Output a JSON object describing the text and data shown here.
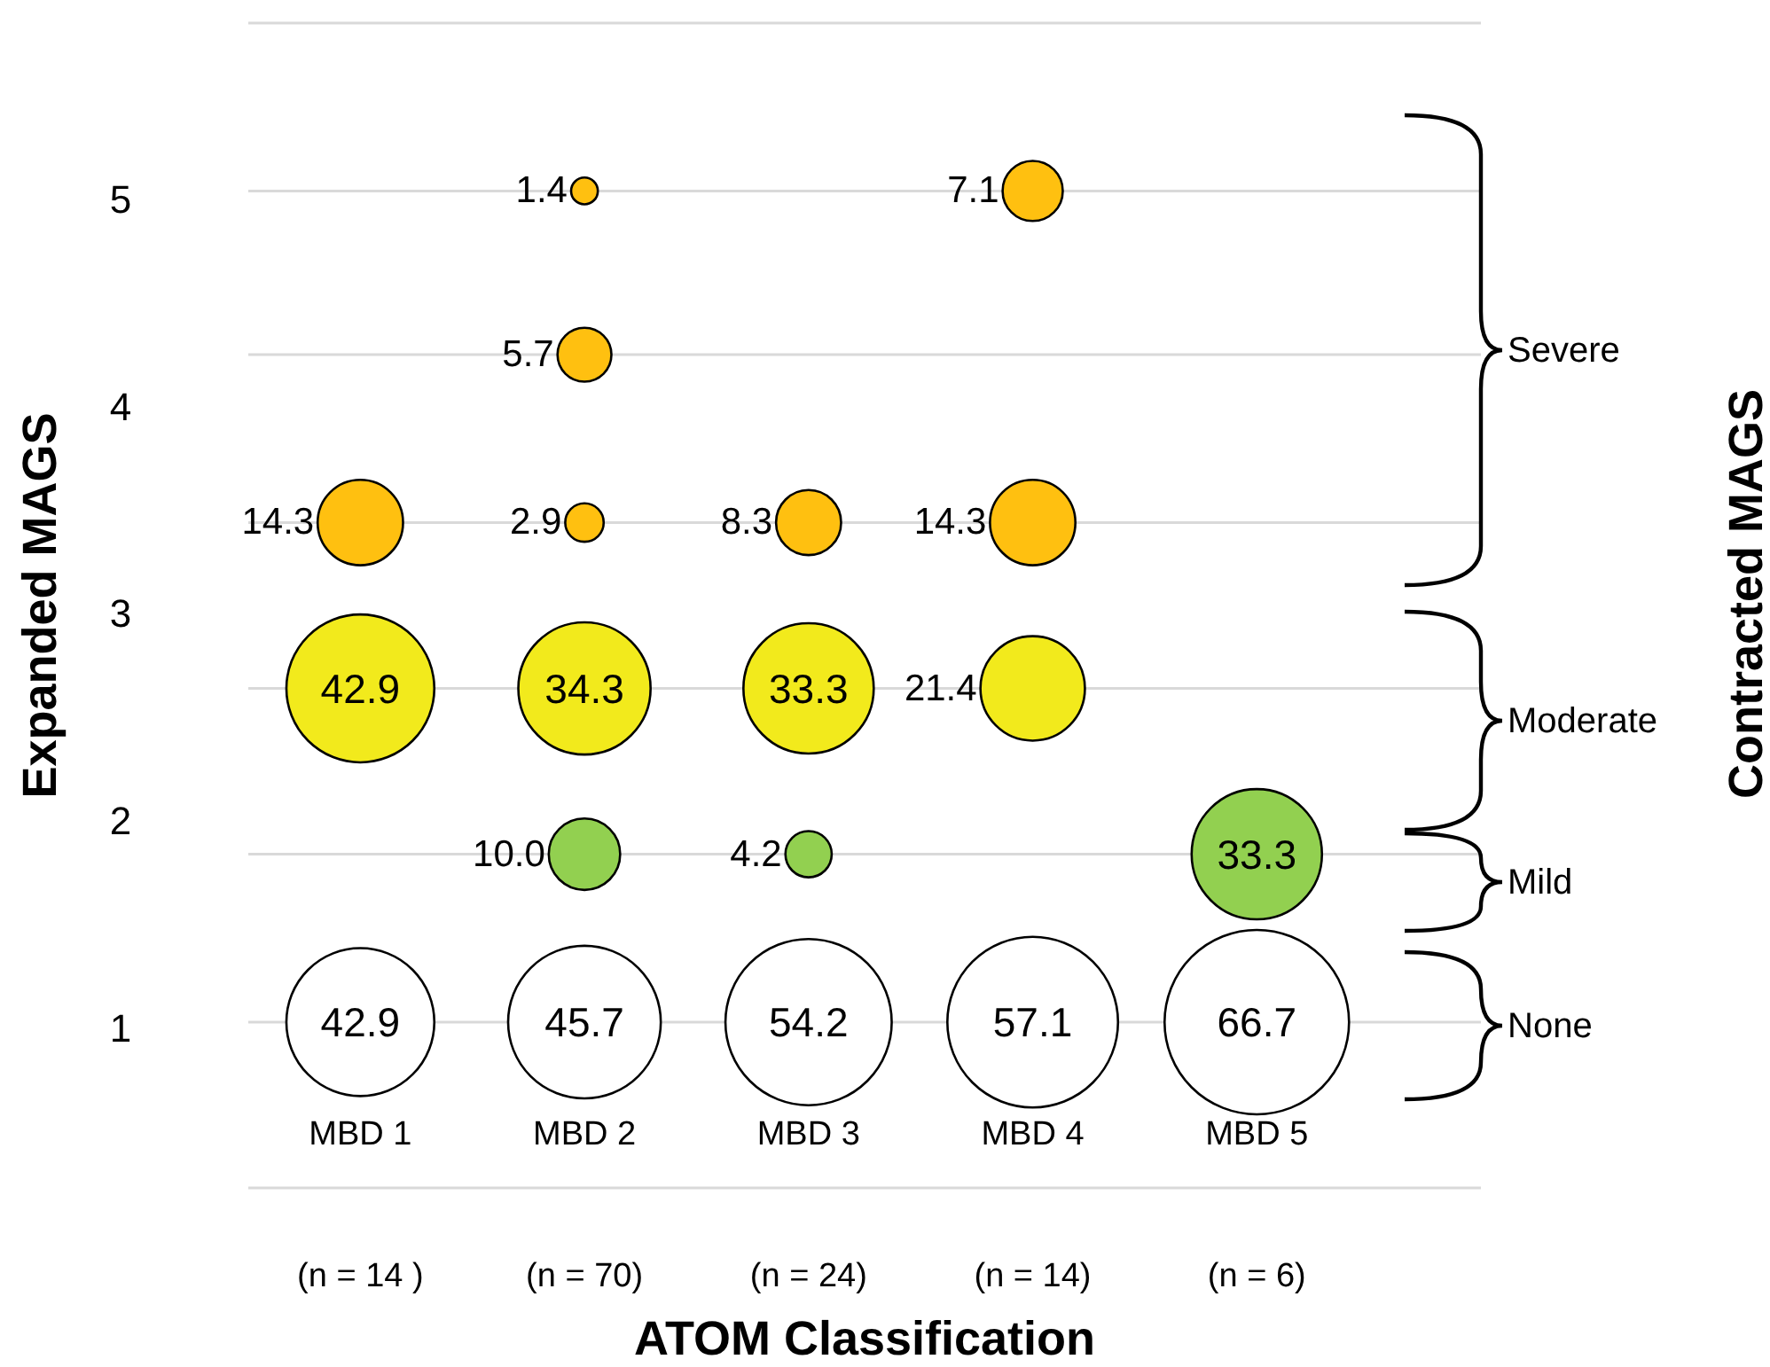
{
  "chart_data": {
    "type": "bubble",
    "xlabel": "ATOM Classification",
    "ylabel": "Expanded MAGS",
    "y2label": "Contracted MAGS",
    "categories": [
      "MBD 1\n(n = 14 )",
      "MBD 2\n(n = 70)",
      "MBD 3\n(n = 24)",
      "MBD 4\n(n = 14)",
      "MBD 5\n(n = 6)"
    ],
    "ylim": [
      0.23,
      5.85
    ],
    "yticks": [
      {
        "value": 0.23,
        "label": null
      },
      1,
      {
        "value": 1.03,
        "label": null
      },
      {
        "value": 1.84,
        "label": null
      },
      2,
      {
        "value": 2.64,
        "label": null
      },
      3,
      {
        "value": 3.44,
        "label": null
      },
      4,
      {
        "value": 4.25,
        "label": null
      },
      5,
      {
        "value": 5.04,
        "label": null
      },
      {
        "value": 5.85,
        "label": null
      }
    ],
    "grid": "y",
    "series": [
      {
        "color": "#ffffff",
        "values": [
          1.03,
          1.03,
          1.03,
          1.03,
          1.03
        ],
        "sizes": [
          42.9,
          45.7,
          54.2,
          57.1,
          66.7
        ],
        "value_labels": [
          "42.9",
          "45.7",
          "54.2",
          "57.1",
          "66.7"
        ]
      },
      {
        "color": "#92d050",
        "values": [
          null,
          1.84,
          1.84,
          null,
          1.84
        ],
        "sizes": [
          null,
          10.0,
          4.2,
          null,
          33.3
        ],
        "value_labels": [
          null,
          "10.0",
          "4.2",
          null,
          "33.3"
        ]
      },
      {
        "color": "#f2ea1c",
        "values": [
          2.64,
          2.64,
          2.64,
          2.64,
          null
        ],
        "sizes": [
          42.9,
          34.3,
          33.3,
          21.4,
          null
        ],
        "value_labels": [
          "42.9",
          "34.3",
          "33.3",
          "21.4",
          null
        ]
      },
      {
        "color": "#ffc010",
        "values": [
          3.44,
          3.44,
          3.44,
          3.44,
          null
        ],
        "sizes": [
          14.3,
          2.9,
          8.3,
          14.3,
          null
        ],
        "value_labels": [
          "14.3",
          "2.9",
          "8.3",
          "14.3",
          null
        ]
      },
      {
        "color": "#ffc010",
        "values": [
          null,
          4.25,
          null,
          null,
          null
        ],
        "sizes": [
          null,
          5.7,
          null,
          null,
          null
        ],
        "value_labels": [
          null,
          "5.7",
          null,
          null,
          null
        ]
      },
      {
        "color": "#ffc010",
        "values": [
          null,
          5.04,
          null,
          5.04,
          null
        ],
        "sizes": [
          null,
          1.4,
          null,
          7.1,
          null
        ],
        "value_labels": [
          null,
          "1.4",
          null,
          "7.1",
          null
        ]
      }
    ],
    "annotations": [
      "Severe",
      "Moderate",
      "Mild",
      "None"
    ]
  }
}
